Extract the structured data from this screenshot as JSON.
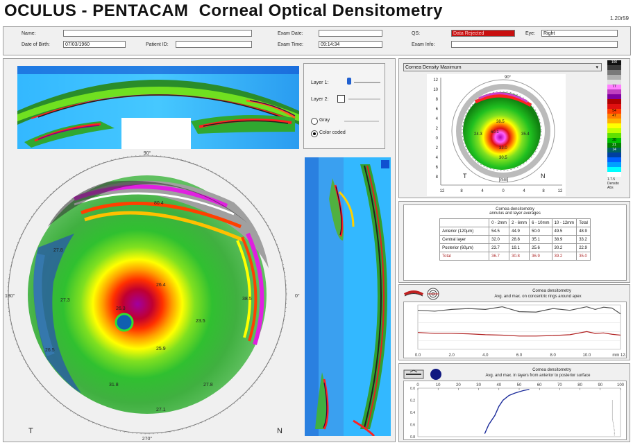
{
  "window": {
    "brand": "OCULUS",
    "separator": "-",
    "product": "PENTACAM",
    "module": "Corneal Optical Densitometry",
    "version": "1.20r59"
  },
  "patient": {
    "name_label": "Name:",
    "name_value": "",
    "dob_label": "Date of Birth:",
    "dob_value": "07/03/1960",
    "patient_id_label": "Patient ID:",
    "patient_id_value": "",
    "exam_date_label": "Exam Date:",
    "exam_date_value": "",
    "exam_time_label": "Exam Time:",
    "exam_time_value": "09:14:34",
    "qs_label": "QS:",
    "qs_value": "Data Rejected",
    "eye_label": "Eye:",
    "eye_value": "Right",
    "exam_info_label": "Exam Info:",
    "exam_info_value": ""
  },
  "layer_controls": {
    "layer1_label": "Layer 1:",
    "layer2_label": "Layer 2:",
    "gray_label": "Gray",
    "color_label": "Color coded",
    "selected_mode": "Color coded"
  },
  "big_map": {
    "top_angle": "90°",
    "bottom_angle": "270°",
    "left_angle": "180°",
    "right_angle": "0°",
    "t_label": "T",
    "n_label": "N",
    "values": [
      "80.4",
      "27.8",
      "27.3",
      "26.5",
      "38.5",
      "26.3",
      "23.5",
      "26.4",
      "25.9",
      "31.8",
      "27.8",
      "27.1"
    ]
  },
  "density_map": {
    "dropdown_label": "Cornea Density Maximum",
    "x_ticks": [
      "12",
      "8",
      "4",
      "0",
      "4",
      "8",
      "12"
    ],
    "y_ticks": [
      "12",
      "10",
      "8",
      "6",
      "4",
      "2",
      "0",
      "2",
      "4",
      "6",
      "8",
      "10",
      "12"
    ],
    "t_label": "T",
    "n_label": "N",
    "unit_label": "[mm]",
    "top_angle": "90°",
    "values": [
      "38.5",
      "60.1",
      "24.3",
      "35.4",
      "33.0",
      "30.5"
    ]
  },
  "color_scale": {
    "colors": [
      "#101010",
      "#3a3a3a",
      "#7a7a7a",
      "#b0b0b0",
      "#e0e0e0",
      "#ff80ff",
      "#c040c0",
      "#8000a0",
      "#b00000",
      "#e01010",
      "#ff4000",
      "#ff8000",
      "#ffb000",
      "#ffff00",
      "#c0ff00",
      "#60e000",
      "#00c000",
      "#008000",
      "#006060",
      "#0040a0",
      "#0060ff",
      "#00a0ff",
      "#00ffff",
      "#ffffff"
    ],
    "labels": [
      "100",
      "",
      "",
      "",
      "",
      "77",
      "",
      "",
      "",
      "",
      "54",
      "47",
      "",
      "",
      "",
      "",
      "28",
      "21",
      "14",
      "",
      "",
      "",
      "",
      ""
    ],
    "footer1": "1.7.5",
    "footer2": "Densito",
    "footer3": "Abs"
  },
  "averages_table": {
    "title1": "Cornea densitometry",
    "title2": "annulus and layer averages",
    "headers": [
      "",
      "0 - 2mm",
      "2 - 6mm",
      "6 - 10mm",
      "10 - 12mm",
      "Total"
    ],
    "rows": [
      [
        "Anterior (120µm)",
        "54.5",
        "44.9",
        "50.0",
        "49.5",
        "48.9"
      ],
      [
        "Central layer",
        "32.0",
        "28.8",
        "35.1",
        "38.9",
        "33.2"
      ],
      [
        "Posterior (60µm)",
        "23.7",
        "19.1",
        "25.6",
        "30.2",
        "22.9"
      ]
    ],
    "total_row": [
      "Total",
      "36.7",
      "30.8",
      "36.9",
      "39.2",
      "35.0"
    ]
  },
  "chart_concentric": {
    "title1": "Cornea densitometry",
    "title2": "Avg. and max. on concentric rings around apex",
    "x_ticks": [
      "0.0",
      "2.0",
      "4.0",
      "6.0",
      "8.0",
      "10.0",
      "mm 12.0"
    ]
  },
  "chart_layers": {
    "title1": "Cornea densitometry",
    "title2": "Avg. and max. in layers from anterior to posterior surface",
    "x_ticks": [
      "0",
      "10",
      "20",
      "30",
      "40",
      "50",
      "60",
      "70",
      "80",
      "90",
      "100"
    ],
    "y_ticks": [
      "0.0",
      "0.2",
      "0.4",
      "0.6",
      "0.8"
    ]
  },
  "chart_data": [
    {
      "type": "line",
      "title": "Cornea densitometry",
      "subtitle": "Avg. and max. on concentric rings around apex",
      "x": [
        0,
        1,
        2,
        3,
        4,
        5,
        6,
        7,
        8,
        9,
        10,
        10.5,
        11,
        11.5,
        12
      ],
      "xlim": [
        0,
        12
      ],
      "ylim": [
        0,
        100
      ],
      "series": [
        {
          "values": [
            88,
            86,
            90,
            92,
            90,
            96,
            85,
            84,
            92,
            88,
            96,
            90,
            95,
            93,
            80
          ]
        },
        {
          "values": [
            38,
            36,
            36,
            35,
            33,
            32,
            30,
            30,
            31,
            33,
            40,
            36,
            37,
            34,
            32
          ]
        }
      ]
    },
    {
      "type": "line",
      "title": "Cornea densitometry",
      "subtitle": "Avg. and max. in layers from anterior to posterior surface",
      "xlim": [
        0,
        100
      ],
      "ylim": [
        0,
        0.8
      ],
      "series": [
        {
          "x": [
            33,
            35,
            38,
            40,
            42,
            45,
            48,
            52,
            55
          ],
          "y": [
            0.75,
            0.6,
            0.45,
            0.3,
            0.2,
            0.12,
            0.08,
            0.04,
            0.02
          ]
        },
        {
          "x": [
            96,
            96,
            97,
            97
          ],
          "y": [
            0.2,
            0.5,
            0.7,
            0.78
          ]
        }
      ]
    }
  ]
}
